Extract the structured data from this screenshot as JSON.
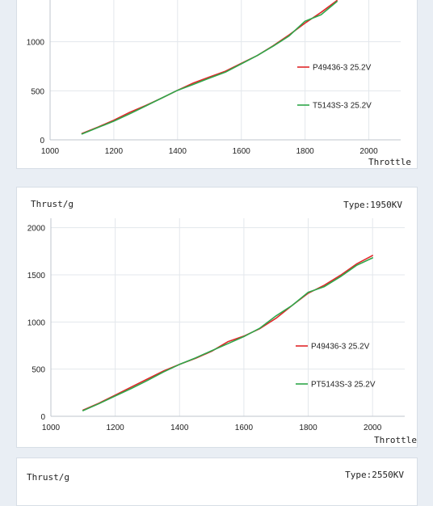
{
  "chart_data": [
    {
      "type": "line",
      "ylabel": "",
      "type_label": "",
      "xlabel": "Throttle",
      "xlim": [
        1000,
        2100
      ],
      "ylim": [
        0,
        1500
      ],
      "xticks": [
        "1000",
        "1200",
        "1400",
        "1600",
        "1800",
        "2000"
      ],
      "yticks": [
        "0",
        "500",
        "1000"
      ],
      "grid": true,
      "legend_position": "right",
      "series": [
        {
          "name": "P49436-3 25.2V",
          "color": "#e0272a",
          "x": [
            1100,
            1150,
            1200,
            1250,
            1300,
            1350,
            1400,
            1450,
            1500,
            1550,
            1600,
            1650,
            1700,
            1750,
            1800,
            1850,
            1900
          ],
          "y": [
            65,
            130,
            200,
            280,
            350,
            425,
            505,
            580,
            640,
            700,
            780,
            860,
            960,
            1070,
            1190,
            1300,
            1420
          ]
        },
        {
          "name": "T5143S-3 25.2V",
          "color": "#2ea74a",
          "x": [
            1100,
            1150,
            1200,
            1250,
            1300,
            1350,
            1400,
            1450,
            1500,
            1550,
            1600,
            1650,
            1700,
            1750,
            1800,
            1850,
            1900
          ],
          "y": [
            60,
            125,
            190,
            265,
            345,
            425,
            505,
            565,
            630,
            690,
            775,
            860,
            955,
            1060,
            1210,
            1275,
            1410
          ]
        }
      ]
    },
    {
      "type": "line",
      "ylabel": "Thrust/g",
      "type_label": "Type:1950KV",
      "xlabel": "Throttle",
      "xlim": [
        1000,
        2100
      ],
      "ylim": [
        0,
        2100
      ],
      "xticks": [
        "1000",
        "1200",
        "1400",
        "1600",
        "1800",
        "2000"
      ],
      "yticks": [
        "0",
        "500",
        "1000",
        "1500",
        "2000"
      ],
      "grid": true,
      "legend_position": "right",
      "series": [
        {
          "name": "P49436-3 25.2V",
          "color": "#e0272a",
          "x": [
            1100,
            1150,
            1200,
            1250,
            1300,
            1350,
            1400,
            1450,
            1500,
            1550,
            1600,
            1650,
            1700,
            1750,
            1800,
            1850,
            1900,
            1950,
            2000
          ],
          "y": [
            65,
            140,
            225,
            310,
            395,
            480,
            550,
            615,
            690,
            790,
            850,
            930,
            1040,
            1175,
            1305,
            1390,
            1495,
            1615,
            1705
          ]
        },
        {
          "name": "PT5143S-3 25.2V",
          "color": "#2ea74a",
          "x": [
            1100,
            1150,
            1200,
            1250,
            1300,
            1350,
            1400,
            1450,
            1500,
            1550,
            1600,
            1650,
            1700,
            1750,
            1800,
            1850,
            1900,
            1950,
            2000
          ],
          "y": [
            60,
            135,
            215,
            295,
            380,
            470,
            550,
            620,
            695,
            770,
            845,
            935,
            1065,
            1175,
            1315,
            1375,
            1480,
            1600,
            1680
          ]
        }
      ]
    },
    {
      "type": "line",
      "ylabel": "Thrust/g",
      "type_label": "Type:2550KV",
      "xlabel": "",
      "series": []
    }
  ]
}
